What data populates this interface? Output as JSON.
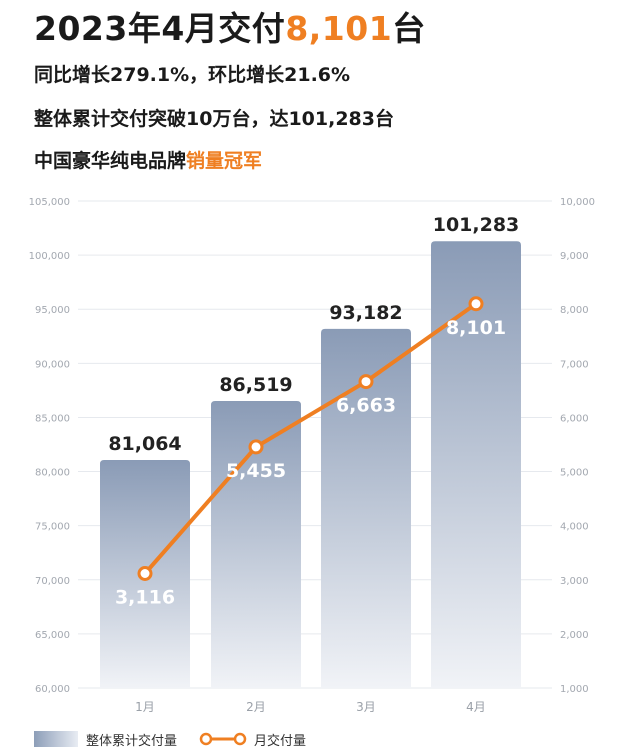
{
  "headline": {
    "prefix": "2023年4月交付",
    "highlight": "8,101",
    "suffix": "台"
  },
  "subtitles": [
    "同比增长279.1%，环比增长21.6%",
    "整体累计交付突破10万台，达101,283台"
  ],
  "subtitle3": {
    "prefix": "中国豪华纯电品牌",
    "highlight": "销量冠军"
  },
  "colors": {
    "accent": "#ef7f22",
    "bar_top": "#8a9bb6",
    "bar_bottom": "#f1f3f7"
  },
  "chart_data": {
    "type": "bar+line",
    "categories": [
      "1月",
      "2月",
      "3月",
      "4月"
    ],
    "bar_series": {
      "name": "整体累计交付量",
      "values": [
        81064,
        86519,
        93182,
        101283
      ],
      "labels": [
        "81,064",
        "86,519",
        "93,182",
        "101,283"
      ]
    },
    "line_series": {
      "name": "月交付量",
      "values": [
        3116,
        5455,
        6663,
        8101
      ],
      "labels": [
        "3,116",
        "5,455",
        "6,663",
        "8,101"
      ]
    },
    "y_left": {
      "lim": [
        60000,
        105000
      ],
      "ticks": [
        "60,000",
        "65,000",
        "70,000",
        "75,000",
        "80,000",
        "85,000",
        "90,000",
        "95,000",
        "100,000",
        "105,000"
      ]
    },
    "y_right": {
      "lim": [
        1000,
        10000
      ],
      "ticks": [
        "1,000",
        "2,000",
        "3,000",
        "4,000",
        "5,000",
        "6,000",
        "7,000",
        "8,000",
        "9,000",
        "10,000"
      ]
    },
    "grid": true,
    "legend_position": "bottom-left"
  }
}
